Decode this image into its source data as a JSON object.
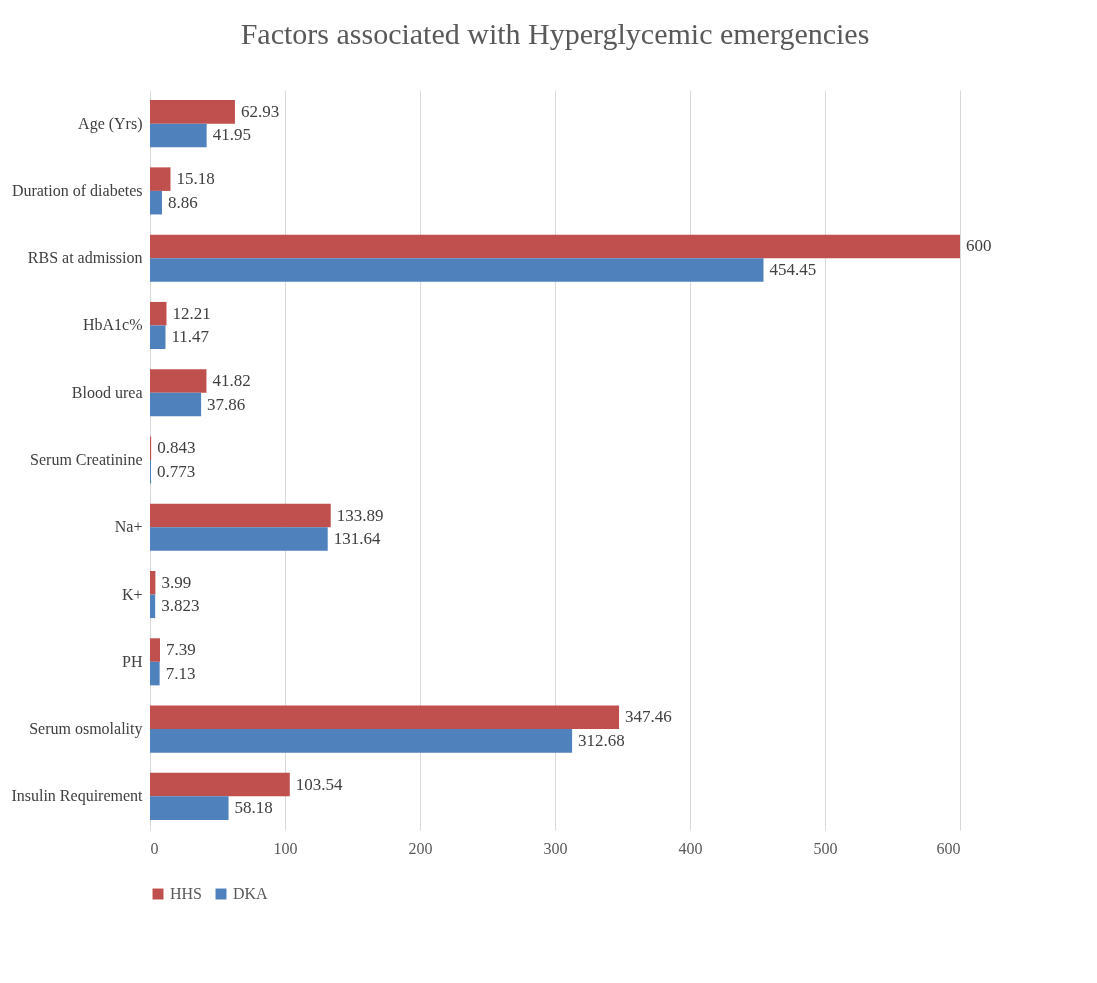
{
  "chart_data": {
    "type": "bar",
    "orientation": "horizontal",
    "title": "Factors associated with Hyperglycemic emergencies",
    "categories": [
      "Age (Yrs)",
      "Duration of diabetes",
      "RBS at admission",
      "HbA1c%",
      "Blood urea",
      "Serum Creatinine",
      "Na+",
      "K+",
      "PH",
      "Serum osmolality",
      "Insulin Requirement"
    ],
    "series": [
      {
        "name": "HHS",
        "color": "#c0504d",
        "values": [
          62.93,
          15.18,
          600,
          12.21,
          41.82,
          0.843,
          133.89,
          3.99,
          7.39,
          347.46,
          103.54
        ]
      },
      {
        "name": "DKA",
        "color": "#4f81bd",
        "values": [
          41.95,
          8.86,
          454.45,
          11.47,
          37.86,
          0.773,
          131.64,
          3.823,
          7.13,
          312.68,
          58.18
        ]
      }
    ],
    "xlim": [
      0,
      600
    ],
    "xticks": [
      0,
      100,
      200,
      300,
      400,
      500,
      600
    ],
    "grid": "x",
    "legend": "bottom",
    "data_labels": true
  }
}
